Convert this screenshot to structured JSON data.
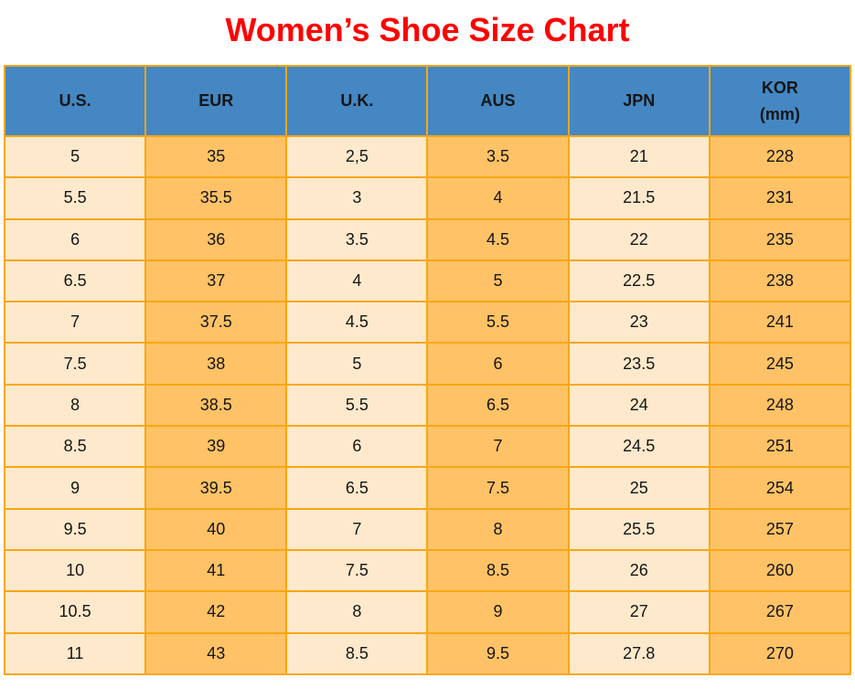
{
  "page": {
    "title": "Women’s Shoe Size Chart"
  },
  "colors": {
    "title_red": "#fe0000",
    "header_blue": "#4487c3",
    "cell_cream": "#fee9cc",
    "cell_orange": "#ffc266",
    "grid_border": "#f9a610",
    "text": "#151515"
  },
  "table": {
    "header_display": [
      "U.S.",
      "EUR",
      "U.K.",
      "AUS",
      "JPN",
      "KOR\n(mm)"
    ],
    "column_keys": [
      "us",
      "eur",
      "uk",
      "aus",
      "jpn",
      "kor"
    ],
    "column_shade": [
      "light",
      "dark",
      "light",
      "dark",
      "light",
      "dark"
    ]
  },
  "chart_data": {
    "type": "table",
    "title": "Women’s Shoe Size Chart",
    "columns": [
      "U.S.",
      "EUR",
      "U.K.",
      "AUS",
      "JPN",
      "KOR (mm)"
    ],
    "rows": [
      [
        "5",
        "35",
        "2,5",
        "3.5",
        "21",
        "228"
      ],
      [
        "5.5",
        "35.5",
        "3",
        "4",
        "21.5",
        "231"
      ],
      [
        "6",
        "36",
        "3.5",
        "4.5",
        "22",
        "235"
      ],
      [
        "6.5",
        "37",
        "4",
        "5",
        "22.5",
        "238"
      ],
      [
        "7",
        "37.5",
        "4.5",
        "5.5",
        "23",
        "241"
      ],
      [
        "7.5",
        "38",
        "5",
        "6",
        "23.5",
        "245"
      ],
      [
        "8",
        "38.5",
        "5.5",
        "6.5",
        "24",
        "248"
      ],
      [
        "8.5",
        "39",
        "6",
        "7",
        "24.5",
        "251"
      ],
      [
        "9",
        "39.5",
        "6.5",
        "7.5",
        "25",
        "254"
      ],
      [
        "9.5",
        "40",
        "7",
        "8",
        "25.5",
        "257"
      ],
      [
        "10",
        "41",
        "7.5",
        "8.5",
        "26",
        "260"
      ],
      [
        "10.5",
        "42",
        "8",
        "9",
        "27",
        "267"
      ],
      [
        "11",
        "43",
        "8.5",
        "9.5",
        "27.8",
        "270"
      ]
    ]
  }
}
